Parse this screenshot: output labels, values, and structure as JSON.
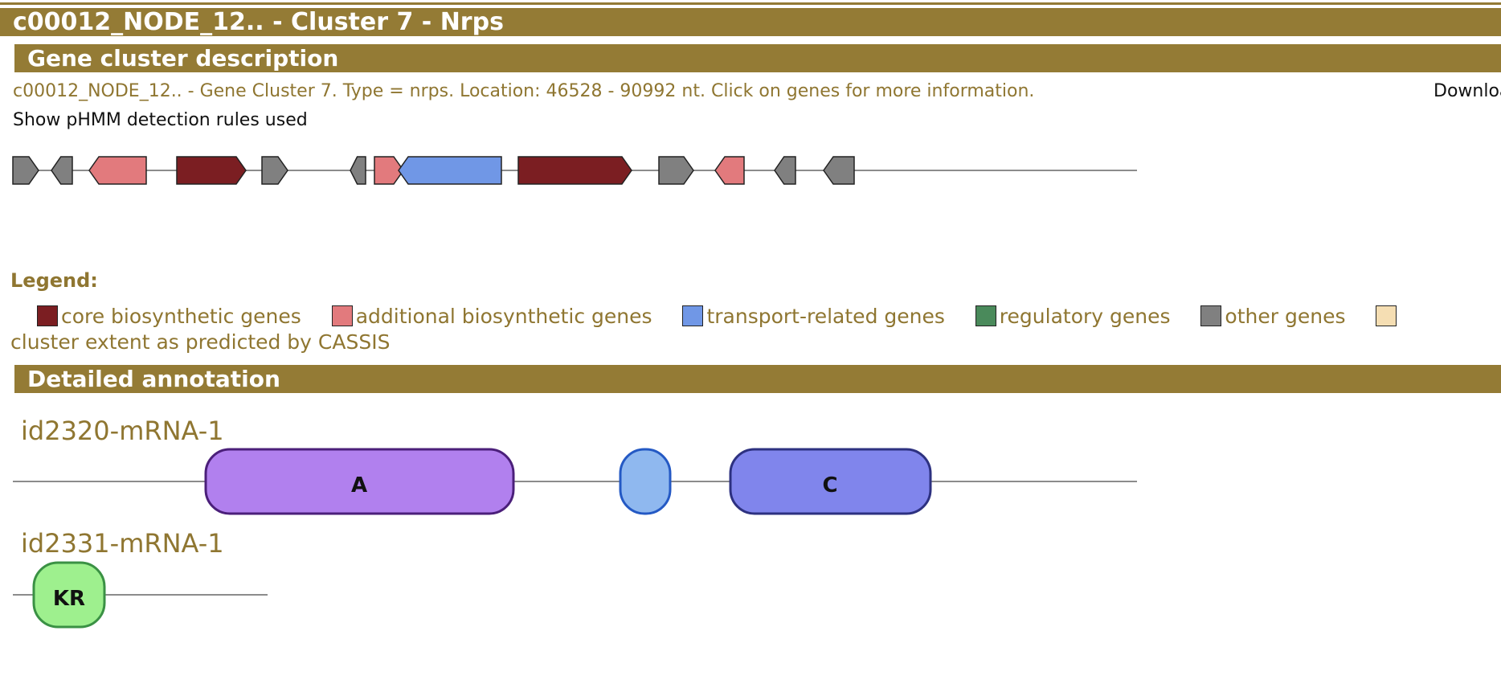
{
  "header": {
    "title": "c00012_NODE_12.. - Cluster 7 - Nrps"
  },
  "gene_cluster_section": {
    "title": "Gene cluster description",
    "description": "c00012_NODE_12.. - Gene Cluster 7. Type = nrps. Location: 46528 - 90992 nt. Click on genes for more information.",
    "download_text": "Download",
    "rules_link": "Show pHMM detection rules used",
    "location_start": 46528,
    "location_end": 90992,
    "genes": [
      {
        "type": "other",
        "strand": "+"
      },
      {
        "type": "other",
        "strand": "-"
      },
      {
        "type": "additional",
        "strand": "-"
      },
      {
        "type": "core",
        "strand": "+"
      },
      {
        "type": "other",
        "strand": "+"
      },
      {
        "type": "other",
        "strand": "-"
      },
      {
        "type": "additional",
        "strand": "+"
      },
      {
        "type": "transport",
        "strand": "-"
      },
      {
        "type": "core",
        "strand": "+"
      },
      {
        "type": "other",
        "strand": "+"
      },
      {
        "type": "additional",
        "strand": "-"
      },
      {
        "type": "other",
        "strand": "-"
      },
      {
        "type": "other",
        "strand": "-"
      }
    ]
  },
  "legend": {
    "title": "Legend:",
    "items": [
      {
        "label": "core biosynthetic genes",
        "color": "#7b1e22"
      },
      {
        "label": "additional biosynthetic genes",
        "color": "#e27a7d"
      },
      {
        "label": "transport-related genes",
        "color": "#7097e6"
      },
      {
        "label": "regulatory genes",
        "color": "#4a8a5b"
      },
      {
        "label": "other genes",
        "color": "#808080"
      },
      {
        "label": "cluster extent as predicted by CASSIS",
        "color": "#f5deb3"
      }
    ]
  },
  "detailed_section": {
    "title": "Detailed annotation",
    "genes": [
      {
        "id": "id2320-mRNA-1",
        "domains": [
          {
            "label": "A",
            "fill": "#b180ee",
            "stroke": "#4b1f7a"
          },
          {
            "label": "",
            "fill": "#8fb8ef",
            "stroke": "#2459c4"
          },
          {
            "label": "C",
            "fill": "#8085ec",
            "stroke": "#2d3180"
          }
        ]
      },
      {
        "id": "id2331-mRNA-1",
        "domains": [
          {
            "label": "KR",
            "fill": "#9ef08e",
            "stroke": "#3a9144"
          }
        ]
      }
    ]
  }
}
